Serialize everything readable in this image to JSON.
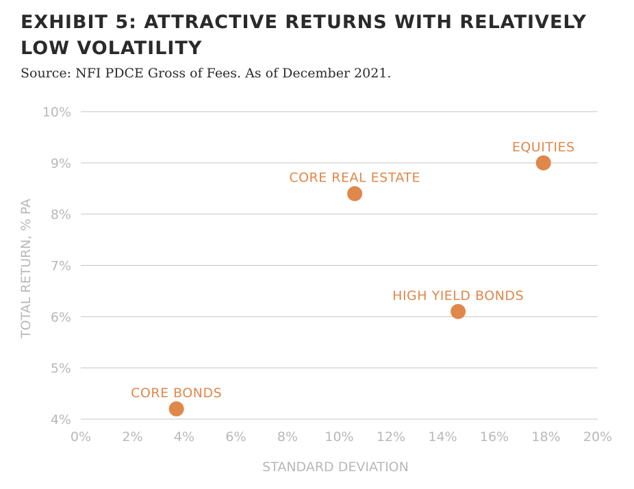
{
  "header": {
    "title": "EXHIBIT 5: ATTRACTIVE RETURNS WITH RELATIVELY LOW VOLATILITY",
    "subtitle": "Source: NFI PDCE Gross of Fees. As of December 2021."
  },
  "chart_data": {
    "type": "scatter",
    "xlabel": "STANDARD DEVIATION",
    "ylabel": "TOTAL RETURN, % PA",
    "xlim": [
      0,
      20
    ],
    "ylim": [
      4,
      10
    ],
    "x_ticks": [
      0,
      2,
      4,
      6,
      8,
      10,
      12,
      14,
      16,
      18,
      20
    ],
    "y_ticks": [
      4,
      5,
      6,
      7,
      8,
      9,
      10
    ],
    "x_tick_labels": [
      "0%",
      "2%",
      "4%",
      "6%",
      "8%",
      "10%",
      "12%",
      "14%",
      "16%",
      "18%",
      "20%"
    ],
    "y_tick_labels": [
      "4%",
      "5%",
      "6%",
      "7%",
      "8%",
      "9%",
      "10%"
    ],
    "grid": "horizontal",
    "point_color": "#e0874a",
    "points": [
      {
        "label": "CORE BONDS",
        "x": 3.7,
        "y": 4.2
      },
      {
        "label": "CORE REAL ESTATE",
        "x": 10.6,
        "y": 8.4
      },
      {
        "label": "HIGH YIELD BONDS",
        "x": 14.6,
        "y": 6.1
      },
      {
        "label": "EQUITIES",
        "x": 17.9,
        "y": 9.0
      }
    ]
  }
}
